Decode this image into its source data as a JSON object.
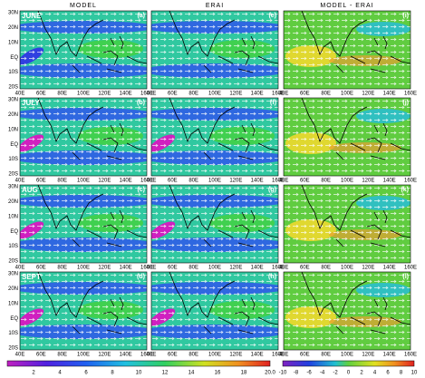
{
  "columns": [
    "MODEL",
    "ERAI",
    "MODEL - ERAI"
  ],
  "rows": [
    {
      "month": "JUNE",
      "panels": [
        "(a)",
        "(e)",
        "(i)"
      ]
    },
    {
      "month": "JULY",
      "panels": [
        "(b)",
        "(f)",
        "(j)"
      ]
    },
    {
      "month": "AUG",
      "panels": [
        "(c)",
        "(g)",
        "(k)"
      ]
    },
    {
      "month": "SEPT",
      "panels": [
        "(d)",
        "(h)",
        "(l)"
      ]
    }
  ],
  "y_axis_labels": [
    "30N",
    "20N",
    "10N",
    "EQ",
    "10S",
    "20S"
  ],
  "x_axis_labels": [
    "40E",
    "60E",
    "80E",
    "100E",
    "120E",
    "140E",
    "160E"
  ],
  "colorbars": [
    {
      "labels": [
        "2",
        "4",
        "6",
        "8",
        "10",
        "12",
        "14",
        "16",
        "18",
        "20.0"
      ]
    },
    {
      "labels": [
        "-10",
        "-8",
        "-6",
        "-4",
        "-2",
        "0",
        "2",
        "4",
        "6",
        "8",
        "10"
      ]
    }
  ]
}
